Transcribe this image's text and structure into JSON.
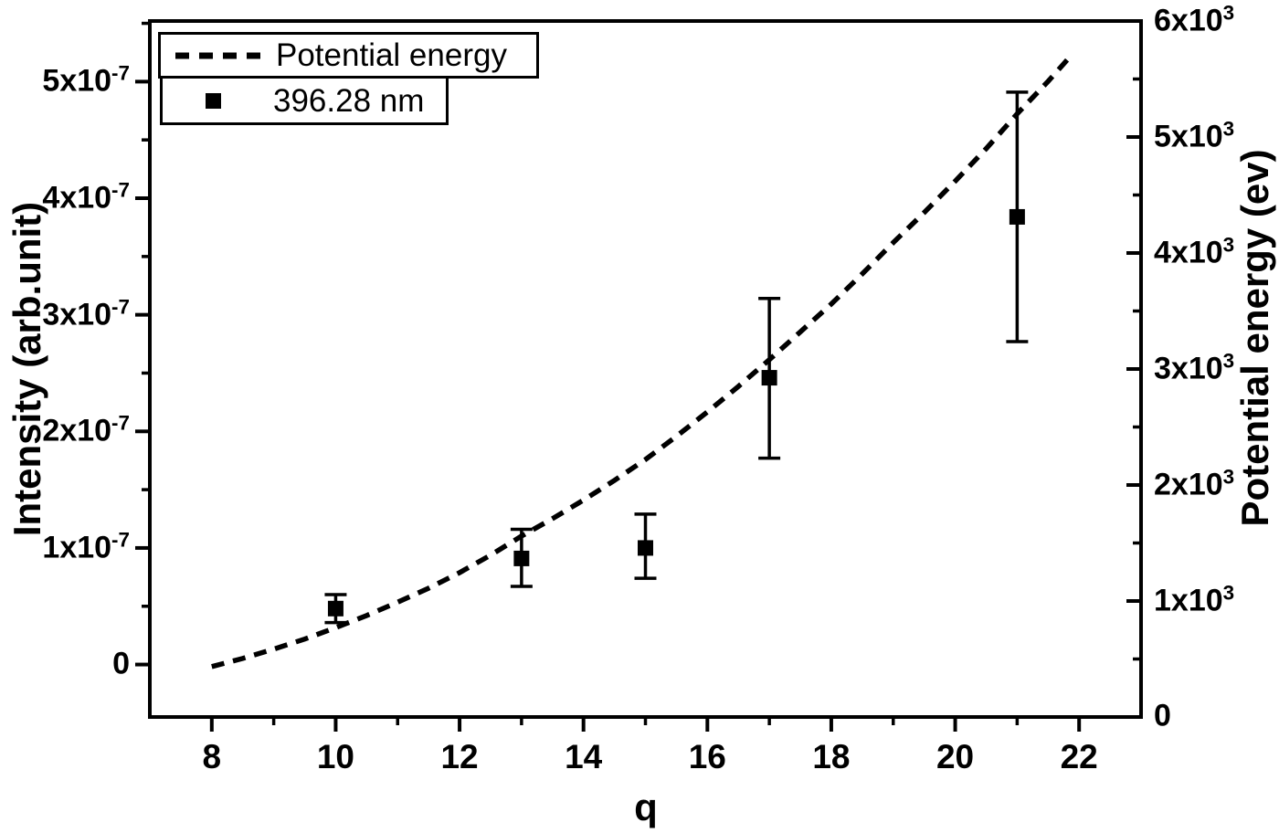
{
  "figure": {
    "background": "#ffffff",
    "ink": "#000000"
  },
  "legend": {
    "position": "top-left",
    "entries": [
      {
        "label": "Potential energy",
        "marker": "dashed-line"
      },
      {
        "label": "396.28 nm",
        "marker": "filled-square"
      }
    ]
  },
  "chart_data": {
    "type": "line+scatter",
    "title": "",
    "grid": false,
    "x_axis": {
      "label": "q",
      "min": 7,
      "max": 23,
      "major_ticks": [
        8,
        10,
        12,
        14,
        16,
        18,
        20,
        22
      ],
      "minor_ticks": [
        9,
        11,
        13,
        15,
        17,
        19,
        21
      ]
    },
    "y_left": {
      "label": "Intensity (arb.unit)",
      "min": -4.5e-08,
      "max": 5.52e-07,
      "major_ticks": [
        {
          "v": 0,
          "base": "0",
          "exp": ""
        },
        {
          "v": 1e-07,
          "base": "1x10",
          "exp": "-7"
        },
        {
          "v": 2e-07,
          "base": "2x10",
          "exp": "-7"
        },
        {
          "v": 3e-07,
          "base": "3x10",
          "exp": "-7"
        },
        {
          "v": 4e-07,
          "base": "4x10",
          "exp": "-7"
        },
        {
          "v": 5e-07,
          "base": "5x10",
          "exp": "-7"
        }
      ],
      "minor_ticks": [
        5e-08,
        1.5e-07,
        2.5e-07,
        3.5e-07,
        4.5e-07,
        5.5e-07
      ]
    },
    "y_right": {
      "label": "Potential energy (ev)",
      "min": 0,
      "max": 6000,
      "major_ticks": [
        {
          "v": 0,
          "base": "0",
          "exp": ""
        },
        {
          "v": 1000,
          "base": "1x10",
          "exp": "3"
        },
        {
          "v": 2000,
          "base": "2x10",
          "exp": "3"
        },
        {
          "v": 3000,
          "base": "3x10",
          "exp": "3"
        },
        {
          "v": 4000,
          "base": "4x10",
          "exp": "3"
        },
        {
          "v": 5000,
          "base": "5x10",
          "exp": "3"
        },
        {
          "v": 6000,
          "base": "6x10",
          "exp": "3"
        }
      ],
      "minor_ticks": [
        500,
        1500,
        2500,
        3500,
        4500,
        5500
      ]
    },
    "series": [
      {
        "name": "Potential energy",
        "axis": "right",
        "style": "dashed-line",
        "points": [
          [
            8,
            435
          ],
          [
            8.5,
            505
          ],
          [
            9,
            585
          ],
          [
            9.5,
            672
          ],
          [
            10,
            770
          ],
          [
            10.5,
            875
          ],
          [
            11,
            990
          ],
          [
            11.5,
            1110
          ],
          [
            12,
            1245
          ],
          [
            12.5,
            1395
          ],
          [
            13,
            1560
          ],
          [
            13.5,
            1710
          ],
          [
            14,
            1870
          ],
          [
            14.5,
            2040
          ],
          [
            15,
            2220
          ],
          [
            15.5,
            2420
          ],
          [
            16,
            2630
          ],
          [
            16.5,
            2850
          ],
          [
            17,
            3080
          ],
          [
            17.5,
            3320
          ],
          [
            18,
            3560
          ],
          [
            18.5,
            3820
          ],
          [
            19,
            4090
          ],
          [
            19.5,
            4350
          ],
          [
            20,
            4620
          ],
          [
            20.5,
            4900
          ],
          [
            21,
            5200
          ],
          [
            21.5,
            5480
          ],
          [
            21.9,
            5720
          ]
        ]
      },
      {
        "name": "396.28 nm",
        "axis": "left",
        "style": "square-with-errorbars",
        "points": [
          {
            "q": 10,
            "v": 4.8e-08,
            "plus": 1.2e-08,
            "minus": 1.2e-08
          },
          {
            "q": 13,
            "v": 9.1e-08,
            "plus": 2.5e-08,
            "minus": 2.4e-08
          },
          {
            "q": 15,
            "v": 1e-07,
            "plus": 2.9e-08,
            "minus": 2.6e-08
          },
          {
            "q": 17,
            "v": 2.46e-07,
            "plus": 6.8e-08,
            "minus": 6.9e-08
          },
          {
            "q": 21,
            "v": 3.84e-07,
            "plus": 1.07e-07,
            "minus": 1.07e-07
          }
        ]
      }
    ]
  }
}
